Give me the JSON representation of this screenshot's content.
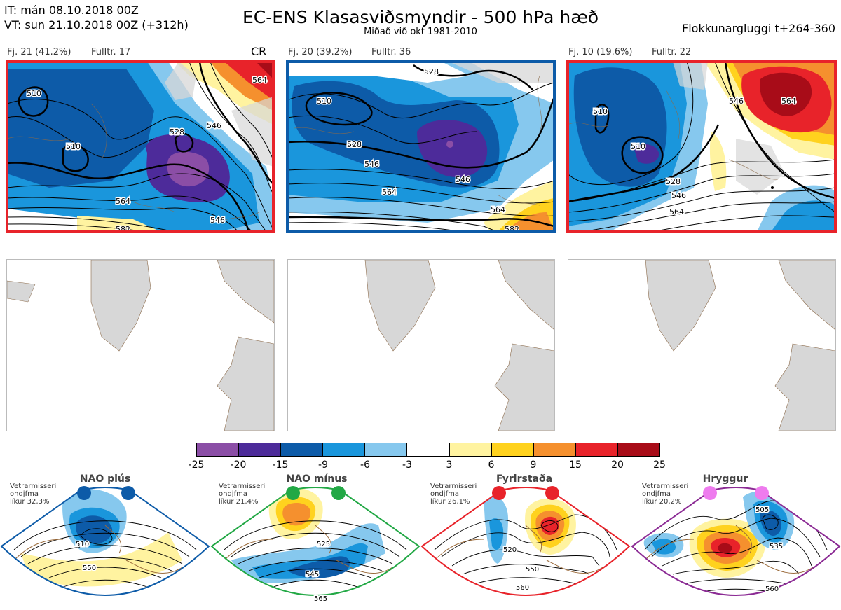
{
  "header": {
    "initial_time": "IT: mán 08.10.2018 00Z",
    "valid_time": "VT: sun 21.10.2018 00Z  (+312h)",
    "title": "EC-ENS Klasasviðsmyndir - 500 hPa hæð",
    "subtitle": "Miðað við okt 1981-2010",
    "window": "Flokkunargluggi t+264-360"
  },
  "clusters": [
    {
      "caption_count": "Fj. 21 (41.2%)",
      "caption_rep": "Fulltr. 17",
      "frame_color": "#e8232a",
      "tag": "CR",
      "contour_labels": [
        "510",
        "510",
        "528",
        "546",
        "564",
        "582",
        "546",
        "564"
      ]
    },
    {
      "caption_count": "Fj. 20 (39.2%)",
      "caption_rep": "Fulltr. 36",
      "frame_color": "#0d5ba8",
      "contour_labels": [
        "510",
        "528",
        "546",
        "564",
        "528",
        "546",
        "564",
        "582"
      ]
    },
    {
      "caption_count": "Fj. 10 (19.6%)",
      "caption_rep": "Fulltr. 22",
      "frame_color": "#e8232a",
      "contour_labels": [
        "510",
        "510",
        "528",
        "546",
        "564",
        "546",
        "564"
      ]
    }
  ],
  "legend": {
    "ticks": [
      "-25",
      "-20",
      "-15",
      "-9",
      "-6",
      "-3",
      "3",
      "6",
      "9",
      "15",
      "20",
      "25"
    ],
    "colors": [
      "#8b4ea6",
      "#4d2b9a",
      "#0d5ba8",
      "#1a96dc",
      "#86c8ee",
      "#ffffff",
      "#fff3a0",
      "#ffd21e",
      "#f5902e",
      "#e8232a",
      "#a80c18"
    ]
  },
  "regimes": [
    {
      "title": "NAO plús",
      "info": [
        "Vetrarmisseri",
        "ondjfma",
        "líkur 32,3%"
      ],
      "color": "#0d5ba8",
      "labels": [
        "510",
        "550"
      ]
    },
    {
      "title": "NAO mínus",
      "info": [
        "Vetrarmisseri",
        "ondjfma",
        "líkur 21,4%"
      ],
      "color": "#22a845",
      "labels": [
        "525",
        "545",
        "565"
      ]
    },
    {
      "title": "Fyrirstaða",
      "info": [
        "Vetrarmisseri",
        "ondjfma",
        "líkur 26,1%"
      ],
      "color": "#e8232a",
      "labels": [
        "520",
        "550",
        "560"
      ]
    },
    {
      "title": "Hryggur",
      "info": [
        "Vetrarmisseri",
        "ondjfma",
        "líkur 20,2%"
      ],
      "color": "#8b2a94",
      "dot_color": "#ee7bee",
      "labels": [
        "505",
        "535",
        "560"
      ]
    }
  ]
}
